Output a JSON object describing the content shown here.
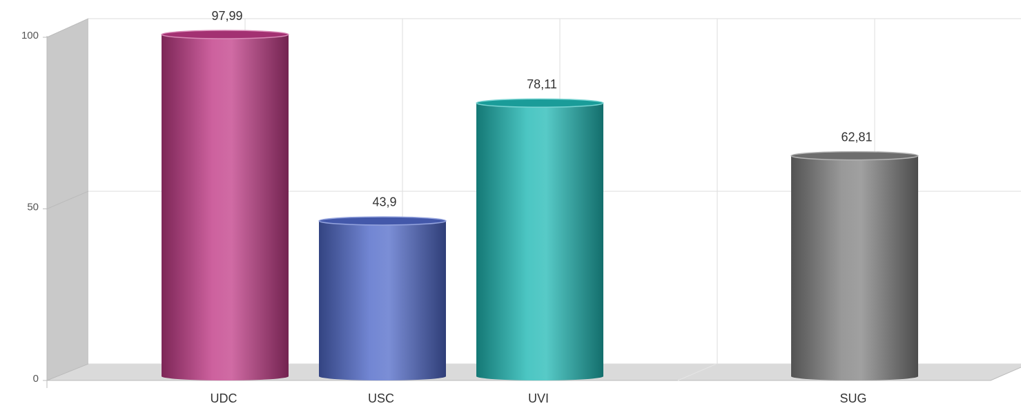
{
  "chart_data": {
    "type": "bar3d",
    "categories": [
      "UDC",
      "USC",
      "UVI",
      null,
      "SUG"
    ],
    "values": [
      97.99,
      43.9,
      78.11,
      null,
      62.81
    ],
    "value_labels": [
      "97,99",
      "43,9",
      "78,11",
      null,
      "62,81"
    ],
    "colors": [
      "#c03a86",
      "#4f68c8",
      "#1fb8b4",
      null,
      "#808080"
    ],
    "ylim": [
      0,
      100
    ],
    "yticks": [
      0,
      50,
      100
    ],
    "grid": true
  }
}
